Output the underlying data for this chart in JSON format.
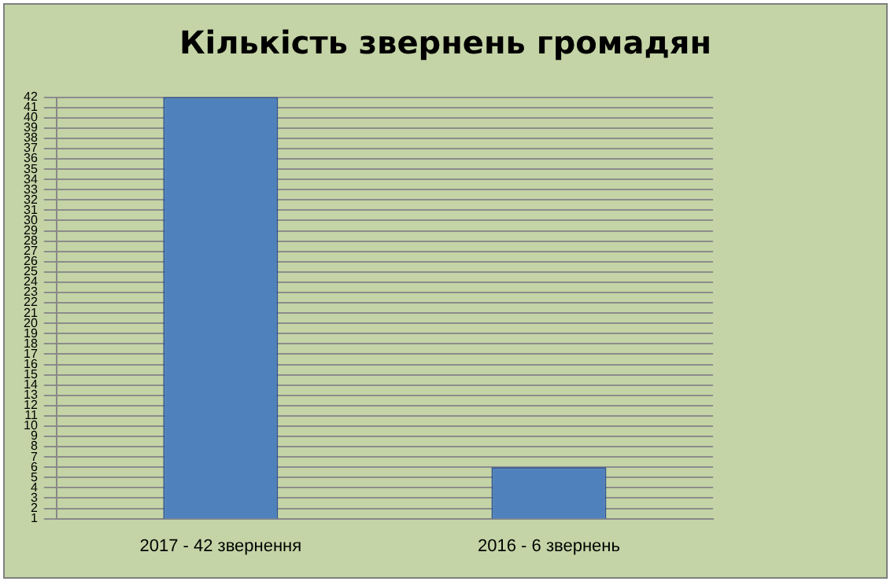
{
  "chart_data": {
    "type": "bar",
    "title": "Кількість звернень громадян",
    "categories": [
      "2017 - 42 звернення",
      "2016 - 6 звернень"
    ],
    "values": [
      42,
      6
    ],
    "color": "#4f81bd",
    "ylim": [
      1,
      42
    ],
    "yticks": [
      1,
      2,
      3,
      4,
      5,
      6,
      7,
      8,
      9,
      10,
      11,
      12,
      13,
      14,
      15,
      16,
      17,
      18,
      19,
      20,
      21,
      22,
      23,
      24,
      25,
      26,
      27,
      28,
      29,
      30,
      31,
      32,
      33,
      34,
      35,
      36,
      37,
      38,
      39,
      40,
      41,
      42
    ],
    "grid": "y"
  }
}
